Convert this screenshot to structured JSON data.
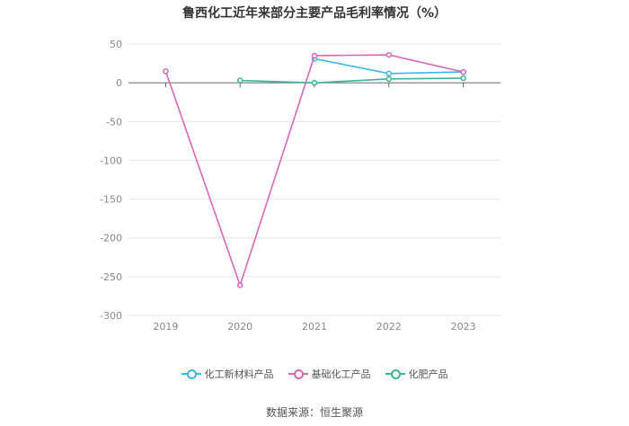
{
  "chart_data": {
    "type": "line",
    "title": "鲁西化工近年来部分主要产品毛利率情况（%）",
    "categories": [
      "2019",
      "2020",
      "2021",
      "2022",
      "2023"
    ],
    "ylim": [
      -300,
      50
    ],
    "yticks": [
      50,
      0,
      -50,
      -100,
      -150,
      -200,
      -250,
      -300
    ],
    "series": [
      {
        "name": "化工新材料产品",
        "color": "#3eb5ea",
        "values": [
          null,
          null,
          31,
          12,
          14
        ]
      },
      {
        "name": "基础化工产品",
        "color": "#d867b7",
        "values": [
          15,
          -261,
          35,
          36,
          14
        ]
      },
      {
        "name": "化肥产品",
        "color": "#3eb39a",
        "values": [
          null,
          3,
          0,
          5,
          6
        ]
      }
    ],
    "grid": true,
    "legend_position": "bottom"
  },
  "source": "数据来源：恒生聚源"
}
